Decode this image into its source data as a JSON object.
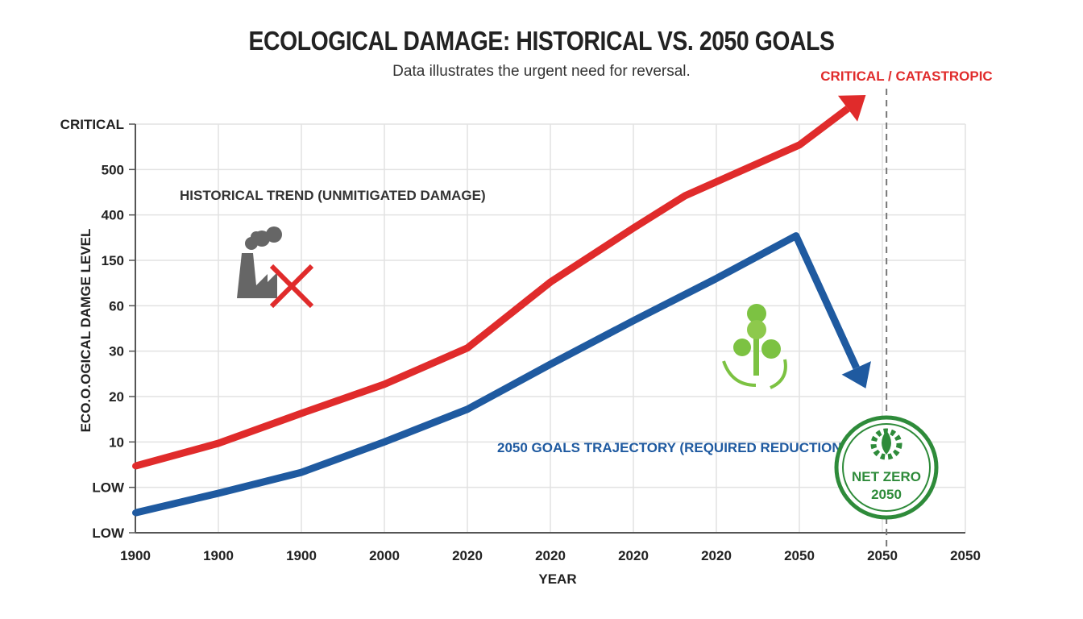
{
  "chart_data": {
    "type": "line",
    "title": "ECOLOGICAL DAMAGE: HISTORICAL VS. 2050 GOALS",
    "subtitle": "Data illustrates the urgent need for reversal.",
    "xlabel": "YEAR",
    "ylabel": "ECO.O.OGICAL DAMGE LEVEL",
    "x_tick_labels": [
      "1900",
      "1900",
      "1900",
      "2000",
      "2020",
      "2020",
      "2020",
      "2020",
      "2050",
      "2050",
      "2050"
    ],
    "y_tick_labels": [
      "LOW",
      "LOW",
      "10",
      "20",
      "30",
      "60",
      "150",
      "400",
      "500",
      "CRITICAL"
    ],
    "x_range_index": [
      0,
      10
    ],
    "y_range_index": [
      0,
      9
    ],
    "grid": true,
    "series": [
      {
        "name": "HISTORICAL TREND (UNMITIGATED DAMAGE)",
        "color": "#e02b2b",
        "points": [
          [
            0,
            1.47
          ],
          [
            1,
            1.97
          ],
          [
            2,
            2.63
          ],
          [
            3,
            3.27
          ],
          [
            4,
            4.07
          ],
          [
            5,
            5.52
          ],
          [
            6,
            6.71
          ],
          [
            6.62,
            7.42
          ],
          [
            8,
            8.54
          ],
          [
            8.8,
            9.64
          ]
        ]
      },
      {
        "name": "2050 GOALS TRAJECTORY (REQUIRED REDUCTION)",
        "color": "#1f5aa0",
        "points": [
          [
            0,
            0.44
          ],
          [
            1,
            0.87
          ],
          [
            2,
            1.33
          ],
          [
            3,
            2.0
          ],
          [
            4,
            2.72
          ],
          [
            5,
            3.71
          ],
          [
            6,
            4.67
          ],
          [
            7,
            5.6
          ],
          [
            7.96,
            6.54
          ],
          [
            8.8,
            3.18
          ]
        ]
      }
    ],
    "annotations": {
      "critical": "CRITICAL / CATASTROPIC",
      "critical_color": "#e02b2b",
      "reference_line_x_index": 9.05,
      "badge_line1": "NET ZERO",
      "badge_line2": "2050",
      "badge_color": "#2e8b3a"
    },
    "icons": [
      "factory-icon",
      "x-mark-icon",
      "tree-recycle-icon",
      "net-zero-badge-icon"
    ]
  }
}
